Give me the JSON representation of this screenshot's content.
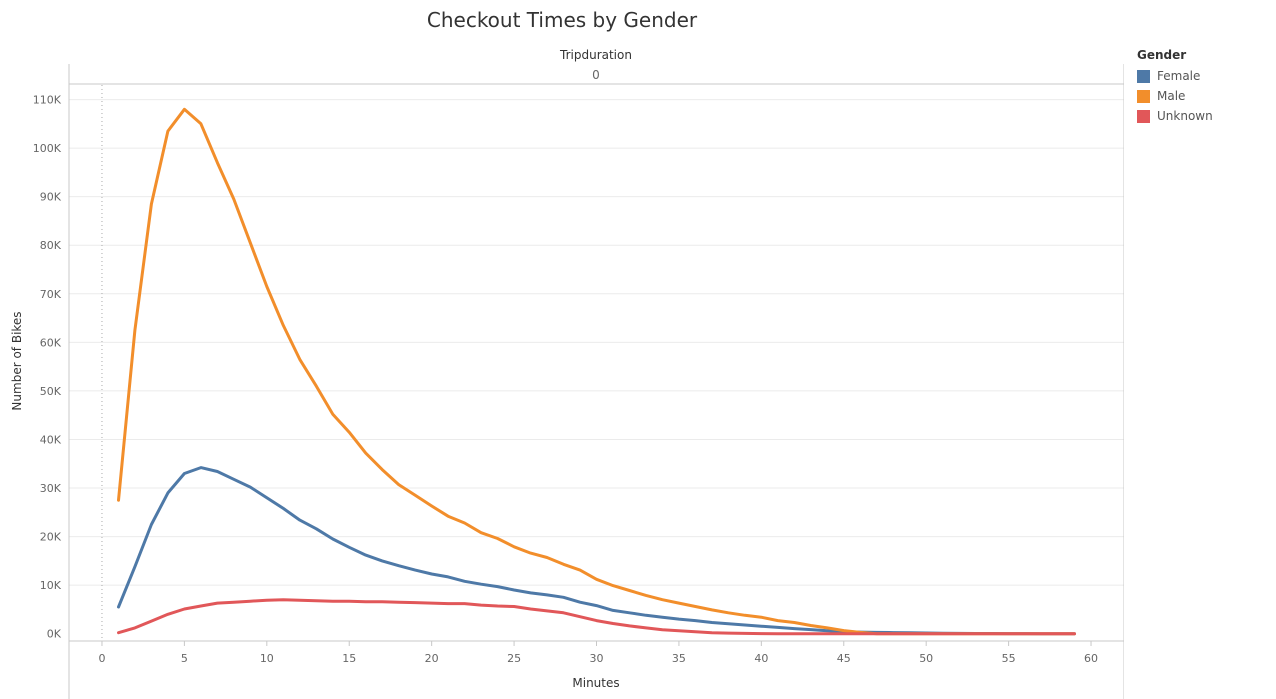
{
  "chart_data": {
    "type": "line",
    "title": "Checkout Times by Gender",
    "column_header": "Tripduration",
    "column_value": "0",
    "xlabel": "Minutes",
    "ylabel": "Number of Bikes",
    "xlim": [
      -2,
      62
    ],
    "ylim": [
      -1500,
      113000
    ],
    "x_ticks": [
      0,
      5,
      10,
      15,
      20,
      25,
      30,
      35,
      40,
      45,
      50,
      55,
      60
    ],
    "y_ticks": [
      0,
      10000,
      20000,
      30000,
      40000,
      50000,
      60000,
      70000,
      80000,
      90000,
      100000,
      110000
    ],
    "y_tick_labels": [
      "0K",
      "10K",
      "20K",
      "30K",
      "40K",
      "50K",
      "60K",
      "70K",
      "80K",
      "90K",
      "100K",
      "110K"
    ],
    "grid": true,
    "legend_title": "Gender",
    "legend_position": "right",
    "x": [
      1,
      2,
      3,
      4,
      5,
      6,
      7,
      8,
      9,
      10,
      11,
      12,
      13,
      14,
      15,
      16,
      17,
      18,
      19,
      20,
      21,
      22,
      23,
      24,
      25,
      26,
      27,
      28,
      29,
      30,
      31,
      32,
      33,
      34,
      35,
      36,
      37,
      38,
      39,
      40,
      41,
      42,
      43,
      44,
      45,
      46,
      47,
      48,
      49,
      50,
      51,
      52,
      53,
      54,
      55,
      56,
      57,
      58,
      59
    ],
    "series": [
      {
        "name": "Female",
        "color": "#4e79a7",
        "values": [
          5500,
          13800,
          22500,
          29000,
          33000,
          34200,
          33400,
          31800,
          30200,
          28000,
          25800,
          23400,
          21600,
          19500,
          17800,
          16200,
          15000,
          14000,
          13100,
          12300,
          11700,
          10800,
          10200,
          9700,
          9000,
          8400,
          8000,
          7500,
          6500,
          5800,
          4800,
          4300,
          3800,
          3400,
          3000,
          2700,
          2300,
          2050,
          1800,
          1550,
          1300,
          1050,
          850,
          600,
          420,
          330,
          270,
          220,
          180,
          140,
          100,
          70,
          50,
          40,
          30,
          20,
          10,
          5,
          0
        ]
      },
      {
        "name": "Male",
        "color": "#f28e2b",
        "values": [
          27500,
          62500,
          88500,
          103500,
          108000,
          105000,
          97000,
          89500,
          80500,
          71500,
          63500,
          56500,
          51000,
          45200,
          41500,
          37200,
          33800,
          30700,
          28500,
          26300,
          24200,
          22800,
          20800,
          19600,
          17900,
          16600,
          15700,
          14300,
          13100,
          11200,
          9900,
          8900,
          7900,
          7000,
          6300,
          5600,
          4900,
          4300,
          3800,
          3400,
          2700,
          2300,
          1700,
          1200,
          650,
          280,
          0,
          0,
          0,
          0,
          0,
          0,
          0,
          0,
          0,
          0,
          0,
          0,
          0
        ]
      },
      {
        "name": "Unknown",
        "color": "#e15759",
        "values": [
          200,
          1200,
          2600,
          4000,
          5100,
          5700,
          6300,
          6500,
          6700,
          6900,
          7000,
          6900,
          6800,
          6700,
          6700,
          6600,
          6600,
          6500,
          6400,
          6300,
          6200,
          6200,
          5900,
          5700,
          5600,
          5100,
          4700,
          4300,
          3500,
          2700,
          2100,
          1600,
          1200,
          800,
          600,
          400,
          200,
          120,
          60,
          20,
          0,
          0,
          0,
          0,
          0,
          0,
          0,
          0,
          0,
          0,
          0,
          0,
          0,
          0,
          0,
          0,
          0,
          0,
          0
        ]
      }
    ]
  }
}
